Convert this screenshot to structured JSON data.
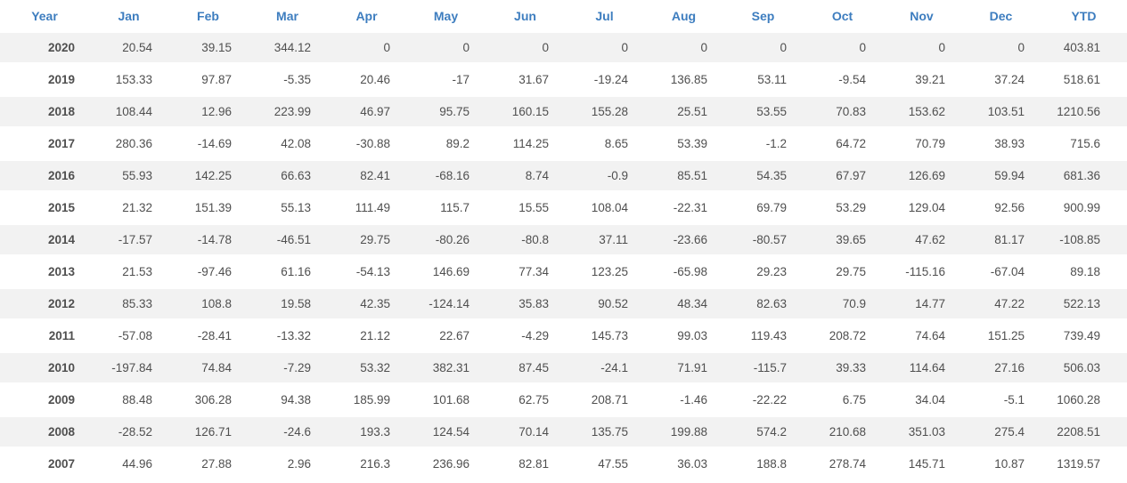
{
  "table": {
    "columns": [
      "Year",
      "Jan",
      "Feb",
      "Mar",
      "Apr",
      "May",
      "Jun",
      "Jul",
      "Aug",
      "Sep",
      "Oct",
      "Nov",
      "Dec",
      "YTD"
    ],
    "rows": [
      {
        "year": "2020",
        "values": [
          "20.54",
          "39.15",
          "344.12",
          "0",
          "0",
          "0",
          "0",
          "0",
          "0",
          "0",
          "0",
          "0",
          "403.81"
        ]
      },
      {
        "year": "2019",
        "values": [
          "153.33",
          "97.87",
          "-5.35",
          "20.46",
          "-17",
          "31.67",
          "-19.24",
          "136.85",
          "53.11",
          "-9.54",
          "39.21",
          "37.24",
          "518.61"
        ]
      },
      {
        "year": "2018",
        "values": [
          "108.44",
          "12.96",
          "223.99",
          "46.97",
          "95.75",
          "160.15",
          "155.28",
          "25.51",
          "53.55",
          "70.83",
          "153.62",
          "103.51",
          "1210.56"
        ]
      },
      {
        "year": "2017",
        "values": [
          "280.36",
          "-14.69",
          "42.08",
          "-30.88",
          "89.2",
          "114.25",
          "8.65",
          "53.39",
          "-1.2",
          "64.72",
          "70.79",
          "38.93",
          "715.6"
        ]
      },
      {
        "year": "2016",
        "values": [
          "55.93",
          "142.25",
          "66.63",
          "82.41",
          "-68.16",
          "8.74",
          "-0.9",
          "85.51",
          "54.35",
          "67.97",
          "126.69",
          "59.94",
          "681.36"
        ]
      },
      {
        "year": "2015",
        "values": [
          "21.32",
          "151.39",
          "55.13",
          "111.49",
          "115.7",
          "15.55",
          "108.04",
          "-22.31",
          "69.79",
          "53.29",
          "129.04",
          "92.56",
          "900.99"
        ]
      },
      {
        "year": "2014",
        "values": [
          "-17.57",
          "-14.78",
          "-46.51",
          "29.75",
          "-80.26",
          "-80.8",
          "37.11",
          "-23.66",
          "-80.57",
          "39.65",
          "47.62",
          "81.17",
          "-108.85"
        ]
      },
      {
        "year": "2013",
        "values": [
          "21.53",
          "-97.46",
          "61.16",
          "-54.13",
          "146.69",
          "77.34",
          "123.25",
          "-65.98",
          "29.23",
          "29.75",
          "-115.16",
          "-67.04",
          "89.18"
        ]
      },
      {
        "year": "2012",
        "values": [
          "85.33",
          "108.8",
          "19.58",
          "42.35",
          "-124.14",
          "35.83",
          "90.52",
          "48.34",
          "82.63",
          "70.9",
          "14.77",
          "47.22",
          "522.13"
        ]
      },
      {
        "year": "2011",
        "values": [
          "-57.08",
          "-28.41",
          "-13.32",
          "21.12",
          "22.67",
          "-4.29",
          "145.73",
          "99.03",
          "119.43",
          "208.72",
          "74.64",
          "151.25",
          "739.49"
        ]
      },
      {
        "year": "2010",
        "values": [
          "-197.84",
          "74.84",
          "-7.29",
          "53.32",
          "382.31",
          "87.45",
          "-24.1",
          "71.91",
          "-115.7",
          "39.33",
          "114.64",
          "27.16",
          "506.03"
        ]
      },
      {
        "year": "2009",
        "values": [
          "88.48",
          "306.28",
          "94.38",
          "185.99",
          "101.68",
          "62.75",
          "208.71",
          "-1.46",
          "-22.22",
          "6.75",
          "34.04",
          "-5.1",
          "1060.28"
        ]
      },
      {
        "year": "2008",
        "values": [
          "-28.52",
          "126.71",
          "-24.6",
          "193.3",
          "124.54",
          "70.14",
          "135.75",
          "199.88",
          "574.2",
          "210.68",
          "351.03",
          "275.4",
          "2208.51"
        ]
      },
      {
        "year": "2007",
        "values": [
          "44.96",
          "27.88",
          "2.96",
          "216.3",
          "236.96",
          "82.81",
          "47.55",
          "36.03",
          "188.8",
          "278.74",
          "145.71",
          "10.87",
          "1319.57"
        ]
      }
    ]
  },
  "colors": {
    "header_text": "#3d7dbf",
    "value_text": "#4f4f4f",
    "negative_text": "#f56c6c",
    "year_text": "#333333",
    "stripe_bg": "#f2f2f2",
    "row_bg": "#ffffff"
  }
}
